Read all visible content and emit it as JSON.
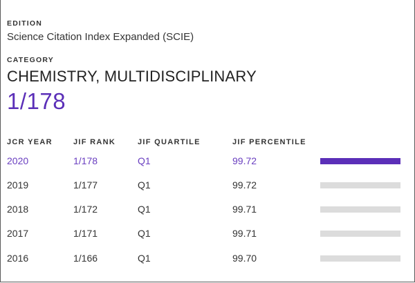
{
  "edition": {
    "label": "EDITION",
    "value": "Science Citation Index Expanded (SCIE)"
  },
  "category": {
    "label": "CATEGORY",
    "name": "CHEMISTRY, MULTIDISCIPLINARY",
    "rank": "1/178"
  },
  "table": {
    "columns": [
      "JCR YEAR",
      "JIF RANK",
      "JIF QUARTILE",
      "JIF PERCENTILE"
    ],
    "rows": [
      {
        "year": "2020",
        "rank": "1/178",
        "quartile": "Q1",
        "percentile": "99.72",
        "highlighted": true
      },
      {
        "year": "2019",
        "rank": "1/177",
        "quartile": "Q1",
        "percentile": "99.72",
        "highlighted": false
      },
      {
        "year": "2018",
        "rank": "1/172",
        "quartile": "Q1",
        "percentile": "99.71",
        "highlighted": false
      },
      {
        "year": "2017",
        "rank": "1/171",
        "quartile": "Q1",
        "percentile": "99.71",
        "highlighted": false
      },
      {
        "year": "2016",
        "rank": "1/166",
        "quartile": "Q1",
        "percentile": "99.70",
        "highlighted": false
      }
    ]
  },
  "colors": {
    "accent": "#5b2fb8",
    "accent_text": "#6a3fc0",
    "bar_track": "#dcdcdc"
  }
}
